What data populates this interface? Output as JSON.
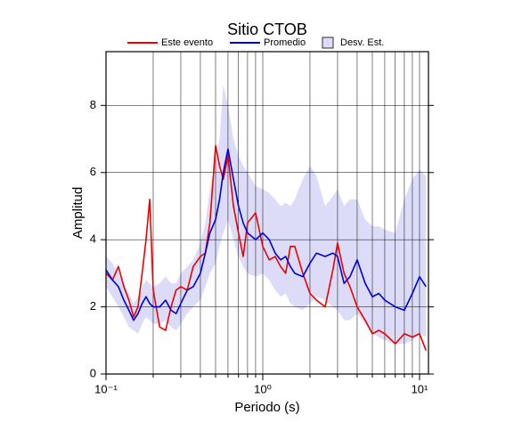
{
  "chart_data": {
    "type": "line",
    "title": "Sitio CTOB",
    "xlabel": "Periodo (s)",
    "ylabel": "Amplitud",
    "xscale": "log",
    "grid": true,
    "xlim": [
      0.1,
      11.4
    ],
    "ylim": [
      0,
      9.6
    ],
    "xticks": [
      {
        "value": 0.1,
        "label": "10⁻¹"
      },
      {
        "value": 1,
        "label": "10⁰"
      },
      {
        "value": 10,
        "label": "10¹"
      }
    ],
    "xminorticks": [
      0.2,
      0.3,
      0.4,
      0.5,
      0.6,
      0.7,
      0.8,
      0.9,
      2,
      3,
      4,
      5,
      6,
      7,
      8,
      9
    ],
    "yticks": [
      0,
      2,
      4,
      6,
      8
    ],
    "x": [
      0.1,
      0.11,
      0.12,
      0.13,
      0.14,
      0.15,
      0.16,
      0.17,
      0.18,
      0.19,
      0.2,
      0.22,
      0.24,
      0.26,
      0.28,
      0.3,
      0.33,
      0.36,
      0.4,
      0.43,
      0.46,
      0.5,
      0.53,
      0.56,
      0.6,
      0.65,
      0.7,
      0.75,
      0.8,
      0.9,
      1.0,
      1.1,
      1.2,
      1.3,
      1.4,
      1.5,
      1.6,
      1.8,
      2.0,
      2.2,
      2.5,
      2.8,
      3.0,
      3.3,
      3.6,
      4.0,
      4.5,
      5.0,
      5.5,
      6.0,
      7.0,
      8.0,
      9.0,
      10,
      11
    ],
    "series": [
      {
        "name": "Este evento",
        "color": "#ee0000",
        "values": [
          3.0,
          2.8,
          3.2,
          2.6,
          2.2,
          1.7,
          2.0,
          3.0,
          4.0,
          5.2,
          2.5,
          1.4,
          1.3,
          2.0,
          2.5,
          2.6,
          2.5,
          3.2,
          3.5,
          3.6,
          4.5,
          6.8,
          6.2,
          5.8,
          6.5,
          5.0,
          4.2,
          3.5,
          4.5,
          4.8,
          3.8,
          3.4,
          3.5,
          3.2,
          3.0,
          3.8,
          3.8,
          3.0,
          2.4,
          2.2,
          2.0,
          3.1,
          3.9,
          3.0,
          2.6,
          2.0,
          1.6,
          1.2,
          1.3,
          1.2,
          0.9,
          1.2,
          1.1,
          1.2,
          0.7
        ]
      },
      {
        "name": "Promedio",
        "color": "#0000dd",
        "values": [
          3.1,
          2.8,
          2.6,
          2.2,
          1.9,
          1.6,
          1.8,
          2.1,
          2.3,
          2.1,
          2.0,
          2.0,
          2.2,
          1.9,
          1.8,
          2.1,
          2.5,
          2.6,
          3.0,
          3.6,
          4.2,
          4.6,
          5.2,
          6.0,
          6.7,
          5.8,
          5.0,
          4.5,
          4.2,
          4.0,
          4.2,
          4.0,
          3.6,
          3.4,
          3.5,
          3.2,
          3.0,
          2.9,
          3.3,
          3.6,
          3.5,
          3.6,
          3.5,
          2.7,
          2.9,
          3.4,
          2.7,
          2.3,
          2.4,
          2.2,
          2.0,
          1.9,
          2.4,
          2.9,
          2.6
        ]
      },
      {
        "name": "Desv. Est.",
        "color": "#dcdcf8",
        "type": "band",
        "lower": [
          2.6,
          2.3,
          2.0,
          1.7,
          1.4,
          1.3,
          1.2,
          1.5,
          1.7,
          1.6,
          1.5,
          1.5,
          1.6,
          1.4,
          1.3,
          1.5,
          1.8,
          2.0,
          2.2,
          2.6,
          3.0,
          3.3,
          3.8,
          4.2,
          4.6,
          4.0,
          3.5,
          3.2,
          3.0,
          2.9,
          3.0,
          2.8,
          2.5,
          2.3,
          2.4,
          2.1,
          2.0,
          1.9,
          2.1,
          2.3,
          2.2,
          2.0,
          1.9,
          1.6,
          1.6,
          1.8,
          1.5,
          1.2,
          1.1,
          1.0,
          0.9,
          0.9,
          1.0,
          1.2,
          1.1
        ],
        "upper": [
          3.5,
          3.3,
          3.0,
          2.7,
          2.4,
          2.1,
          2.3,
          2.6,
          2.8,
          2.7,
          2.6,
          2.7,
          2.9,
          2.7,
          2.7,
          3.0,
          3.2,
          3.4,
          3.9,
          4.5,
          5.5,
          6.3,
          7.0,
          8.6,
          8.0,
          7.0,
          6.5,
          6.2,
          6.0,
          5.6,
          5.5,
          5.4,
          5.2,
          5.0,
          5.1,
          5.0,
          5.2,
          5.8,
          6.2,
          5.9,
          5.0,
          5.3,
          5.5,
          5.0,
          5.2,
          5.2,
          4.6,
          4.4,
          4.4,
          4.3,
          4.2,
          5.2,
          5.8,
          6.1,
          5.9
        ]
      }
    ]
  }
}
